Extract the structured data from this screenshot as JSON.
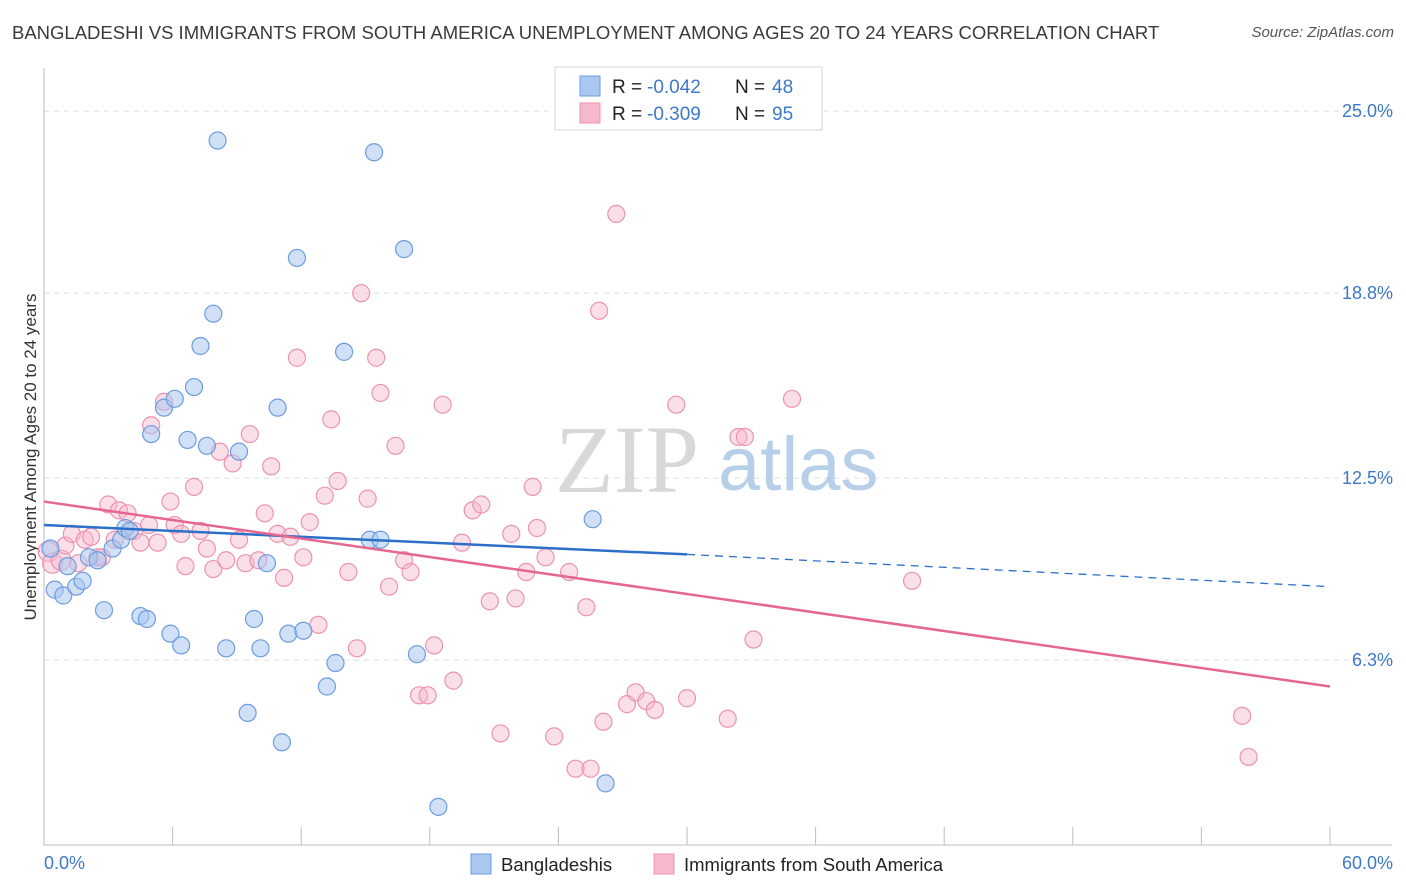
{
  "header": {
    "title": "BANGLADESHI VS IMMIGRANTS FROM SOUTH AMERICA UNEMPLOYMENT AMONG AGES 20 TO 24 YEARS CORRELATION CHART",
    "source": "Source: ZipAtlas.com"
  },
  "watermark": {
    "zip": "ZIP",
    "atlas": "atlas"
  },
  "legend": {
    "r_label": "R =",
    "n_label": "N =",
    "rows": [
      {
        "r": "-0.042",
        "n": "48",
        "color": "#a9c7ef"
      },
      {
        "r": "-0.309",
        "n": "95",
        "color": "#f6b9cc"
      }
    ]
  },
  "bottom_legend": [
    "Bangladeshis",
    "Immigrants from South America"
  ],
  "chart_data": {
    "type": "scatter",
    "title": "BANGLADESHI VS IMMIGRANTS FROM SOUTH AMERICA UNEMPLOYMENT AMONG AGES 20 TO 24 YEARS CORRELATION CHART",
    "xlabel": "",
    "ylabel": "Unemployment Among Ages 20 to 24 years",
    "xlim": [
      0,
      60
    ],
    "ylim": [
      0,
      26.3
    ],
    "x_tick_labels": [
      "0.0%",
      "60.0%"
    ],
    "y_ticks": [
      6.3,
      12.5,
      18.8,
      25.0
    ],
    "y_tick_labels": [
      "6.3%",
      "12.5%",
      "18.8%",
      "25.0%"
    ],
    "grid": true,
    "legend_position": "top-center",
    "colors": {
      "blue_fill": "#a9c7ef",
      "blue_stroke": "#6d9ce0",
      "blue_line": "#2c6fc9",
      "pink_fill": "#f6b9cc",
      "pink_stroke": "#ec93b1",
      "pink_line": "#e5678f"
    },
    "series": [
      {
        "name": "Bangladeshis",
        "r": -0.042,
        "n": 48,
        "trend": {
          "x": [
            0,
            30
          ],
          "y": [
            10.9,
            9.9
          ],
          "dashed_to": {
            "x": 60,
            "y": 8.8
          }
        },
        "points": [
          [
            0.3,
            10.1
          ],
          [
            0.5,
            8.7
          ],
          [
            0.9,
            8.5
          ],
          [
            1.1,
            9.5
          ],
          [
            1.5,
            8.8
          ],
          [
            1.8,
            9.0
          ],
          [
            2.1,
            9.8
          ],
          [
            2.5,
            9.7
          ],
          [
            2.8,
            8.0
          ],
          [
            3.2,
            10.1
          ],
          [
            3.6,
            10.4
          ],
          [
            3.8,
            10.8
          ],
          [
            4.0,
            10.7
          ],
          [
            4.5,
            7.8
          ],
          [
            4.8,
            7.7
          ],
          [
            5.0,
            14.0
          ],
          [
            5.6,
            14.9
          ],
          [
            5.9,
            7.2
          ],
          [
            6.1,
            15.2
          ],
          [
            6.4,
            6.8
          ],
          [
            6.7,
            13.8
          ],
          [
            7.0,
            15.6
          ],
          [
            7.3,
            17.0
          ],
          [
            7.6,
            13.6
          ],
          [
            7.9,
            18.1
          ],
          [
            8.1,
            24.0
          ],
          [
            8.5,
            6.7
          ],
          [
            9.1,
            13.4
          ],
          [
            9.5,
            4.5
          ],
          [
            9.8,
            7.7
          ],
          [
            10.1,
            6.7
          ],
          [
            10.4,
            9.6
          ],
          [
            10.9,
            14.9
          ],
          [
            11.1,
            3.5
          ],
          [
            11.4,
            7.2
          ],
          [
            11.8,
            20.0
          ],
          [
            12.1,
            7.3
          ],
          [
            13.2,
            5.4
          ],
          [
            13.6,
            6.2
          ],
          [
            14.0,
            16.8
          ],
          [
            15.2,
            10.4
          ],
          [
            15.4,
            23.6
          ],
          [
            15.7,
            10.4
          ],
          [
            16.8,
            20.3
          ],
          [
            17.4,
            6.5
          ],
          [
            18.4,
            1.3
          ],
          [
            25.6,
            11.1
          ],
          [
            26.2,
            2.1
          ]
        ]
      },
      {
        "name": "Immigrants from South America",
        "r": -0.309,
        "n": 95,
        "trend": {
          "x": [
            0,
            60
          ],
          "y": [
            11.7,
            5.4
          ]
        },
        "points": [
          [
            0.2,
            10.0
          ],
          [
            0.4,
            9.6
          ],
          [
            0.8,
            9.7
          ],
          [
            1.0,
            10.2
          ],
          [
            1.3,
            10.6
          ],
          [
            1.6,
            9.6
          ],
          [
            1.9,
            10.4
          ],
          [
            2.2,
            10.5
          ],
          [
            2.5,
            9.8
          ],
          [
            2.7,
            9.8
          ],
          [
            3.0,
            11.6
          ],
          [
            3.3,
            10.4
          ],
          [
            3.5,
            11.4
          ],
          [
            3.9,
            11.3
          ],
          [
            4.2,
            10.7
          ],
          [
            4.5,
            10.3
          ],
          [
            4.9,
            10.9
          ],
          [
            5.0,
            14.3
          ],
          [
            5.3,
            10.3
          ],
          [
            5.6,
            15.1
          ],
          [
            5.9,
            11.7
          ],
          [
            6.1,
            10.9
          ],
          [
            6.4,
            10.6
          ],
          [
            6.6,
            9.5
          ],
          [
            7.0,
            12.2
          ],
          [
            7.3,
            10.7
          ],
          [
            7.6,
            10.1
          ],
          [
            7.9,
            9.4
          ],
          [
            8.2,
            13.4
          ],
          [
            8.5,
            9.7
          ],
          [
            8.8,
            13.0
          ],
          [
            9.1,
            10.4
          ],
          [
            9.4,
            9.6
          ],
          [
            9.6,
            14.0
          ],
          [
            10.0,
            9.7
          ],
          [
            10.3,
            11.3
          ],
          [
            10.6,
            12.9
          ],
          [
            10.9,
            10.6
          ],
          [
            11.2,
            9.1
          ],
          [
            11.5,
            10.5
          ],
          [
            11.8,
            16.6
          ],
          [
            12.1,
            9.8
          ],
          [
            12.4,
            11.0
          ],
          [
            12.8,
            7.5
          ],
          [
            13.1,
            11.9
          ],
          [
            13.4,
            14.5
          ],
          [
            13.7,
            12.4
          ],
          [
            14.2,
            9.3
          ],
          [
            14.6,
            6.7
          ],
          [
            14.8,
            18.8
          ],
          [
            15.1,
            11.8
          ],
          [
            15.5,
            16.6
          ],
          [
            15.7,
            15.4
          ],
          [
            16.1,
            8.8
          ],
          [
            16.4,
            13.6
          ],
          [
            16.8,
            9.7
          ],
          [
            17.1,
            9.3
          ],
          [
            17.5,
            5.1
          ],
          [
            17.9,
            5.1
          ],
          [
            18.2,
            6.8
          ],
          [
            18.6,
            15.0
          ],
          [
            19.1,
            5.6
          ],
          [
            19.5,
            10.3
          ],
          [
            20.0,
            11.4
          ],
          [
            20.4,
            11.6
          ],
          [
            20.8,
            8.3
          ],
          [
            21.3,
            3.8
          ],
          [
            21.8,
            10.6
          ],
          [
            22.0,
            8.4
          ],
          [
            22.5,
            9.3
          ],
          [
            22.8,
            12.2
          ],
          [
            23.0,
            10.8
          ],
          [
            23.4,
            9.8
          ],
          [
            23.8,
            3.7
          ],
          [
            24.5,
            9.3
          ],
          [
            24.8,
            2.6
          ],
          [
            25.3,
            8.1
          ],
          [
            25.5,
            2.6
          ],
          [
            25.9,
            18.2
          ],
          [
            26.1,
            4.2
          ],
          [
            26.7,
            21.5
          ],
          [
            27.2,
            4.8
          ],
          [
            27.6,
            5.2
          ],
          [
            28.1,
            4.9
          ],
          [
            28.5,
            4.6
          ],
          [
            29.5,
            15.0
          ],
          [
            30.0,
            5.0
          ],
          [
            31.9,
            4.3
          ],
          [
            32.4,
            13.9
          ],
          [
            32.7,
            13.9
          ],
          [
            33.1,
            7.0
          ],
          [
            34.9,
            15.2
          ],
          [
            40.5,
            9.0
          ],
          [
            55.9,
            4.4
          ],
          [
            56.2,
            3.0
          ]
        ]
      }
    ]
  }
}
